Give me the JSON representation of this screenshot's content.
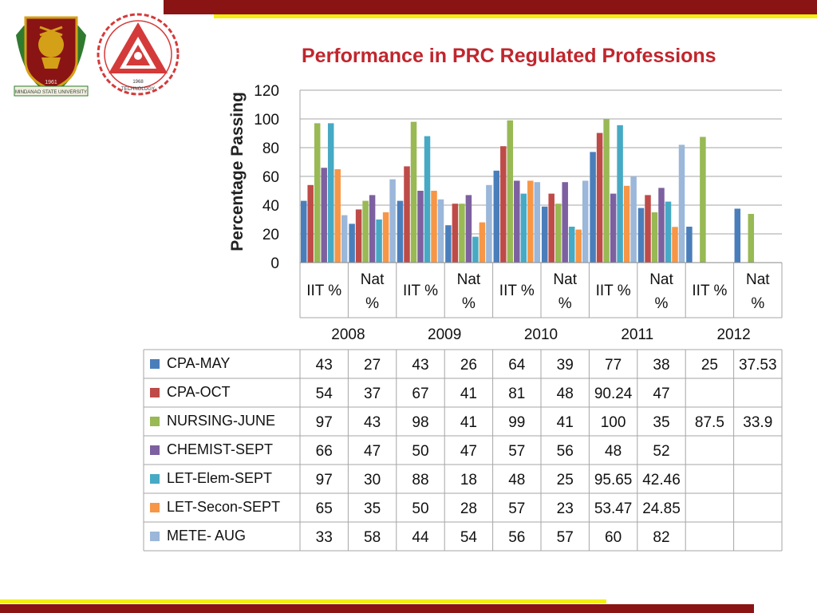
{
  "header": {
    "title": "Performance in PRC Regulated Professions"
  },
  "logos": {
    "left_year": "1961",
    "left_text": "MINDANAO STATE UNIVERSITY",
    "right_year": "1968",
    "right_text": "TECHNOLOGY"
  },
  "colors": {
    "bar_red": "#8a1414",
    "accent_yellow": "#f4ef13",
    "title_red": "#c0262d"
  },
  "chart_data": {
    "type": "bar",
    "ylabel": "Percentage Passing",
    "ylim": [
      0,
      120
    ],
    "yticks": [
      0,
      20,
      40,
      60,
      80,
      100,
      120
    ],
    "grid": true,
    "categories": [
      "IIT %",
      "Nat %",
      "IIT %",
      "Nat %",
      "IIT %",
      "Nat %",
      "IIT %",
      "Nat %",
      "IIT %",
      "Nat %"
    ],
    "category_label_lines": [
      [
        "IIT %"
      ],
      [
        "Nat",
        "%"
      ],
      [
        "IIT %"
      ],
      [
        "Nat",
        "%"
      ],
      [
        "IIT %"
      ],
      [
        "Nat",
        "%"
      ],
      [
        "IIT %"
      ],
      [
        "Nat",
        "%"
      ],
      [
        "IIT %"
      ],
      [
        "Nat",
        "%"
      ]
    ],
    "groups": [
      "2008",
      "2009",
      "2010",
      "2011",
      "2012"
    ],
    "series": [
      {
        "name": "CPA-MAY",
        "color": "#4a7ebb",
        "values": [
          43,
          27,
          43,
          26,
          64,
          39,
          77,
          38,
          25,
          37.53
        ],
        "labels": [
          "43",
          "27",
          "43",
          "26",
          "64",
          "39",
          "77",
          "38",
          "25",
          "37.53"
        ]
      },
      {
        "name": "CPA-OCT",
        "color": "#be4b48",
        "values": [
          54,
          37,
          67,
          41,
          81,
          48,
          90.24,
          47,
          null,
          null
        ],
        "labels": [
          "54",
          "37",
          "67",
          "41",
          "81",
          "48",
          "90.24",
          "47",
          "",
          ""
        ]
      },
      {
        "name": "NURSING-JUNE",
        "color": "#98b954",
        "values": [
          97,
          43,
          98,
          41,
          99,
          41,
          100,
          35,
          87.5,
          33.9
        ],
        "labels": [
          "97",
          "43",
          "98",
          "41",
          "99",
          "41",
          "100",
          "35",
          "87.5",
          "33.9"
        ]
      },
      {
        "name": "CHEMIST-SEPT",
        "color": "#7d60a0",
        "values": [
          66,
          47,
          50,
          47,
          57,
          56,
          48,
          52,
          null,
          null
        ],
        "labels": [
          "66",
          "47",
          "50",
          "47",
          "57",
          "56",
          "48",
          "52",
          "",
          ""
        ]
      },
      {
        "name": "LET-Elem-SEPT",
        "color": "#46aac5",
        "values": [
          97,
          30,
          88,
          18,
          48,
          25,
          95.65,
          42.46,
          null,
          null
        ],
        "labels": [
          "97",
          "30",
          "88",
          "18",
          "48",
          "25",
          "95.65",
          "42.46",
          "",
          ""
        ]
      },
      {
        "name": "LET-Secon-SEPT",
        "color": "#f79646",
        "values": [
          65,
          35,
          50,
          28,
          57,
          23,
          53.47,
          24.85,
          null,
          null
        ],
        "labels": [
          "65",
          "35",
          "50",
          "28",
          "57",
          "23",
          "53.47",
          "24.85",
          "",
          ""
        ]
      },
      {
        "name": "METE- AUG",
        "color": "#9bb7d9",
        "values": [
          33,
          58,
          44,
          54,
          56,
          57,
          60,
          82,
          null,
          null
        ],
        "labels": [
          "33",
          "58",
          "44",
          "54",
          "56",
          "57",
          "60",
          "82",
          "",
          ""
        ]
      }
    ]
  }
}
